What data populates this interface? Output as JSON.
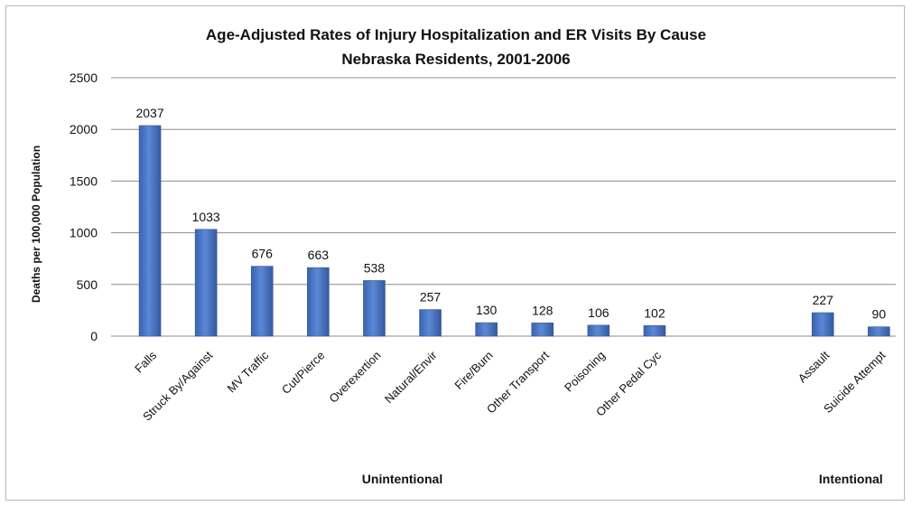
{
  "chart_data": {
    "type": "bar",
    "title": [
      "Age-Adjusted Rates of Injury Hospitalization and ER Visits By Cause",
      "Nebraska Residents, 2001-2006"
    ],
    "ylabel": "Deaths per 100,000 Population",
    "ylim": [
      0,
      2500
    ],
    "yticks": [
      "0",
      "500",
      "1000",
      "1500",
      "2000",
      "2500"
    ],
    "grid": true,
    "categories": [
      "Falls",
      "Struck By/Against",
      "MV Traffic",
      "Cut/Pierce",
      "Overexertion",
      "Natural/Envir",
      "Fire/Burn",
      "Other Transport",
      "Poisoning",
      "Other Pedal Cyc",
      "",
      "",
      "Assault",
      "Suicide Attempt"
    ],
    "values": [
      2037,
      1033,
      676,
      663,
      538,
      257,
      130,
      128,
      106,
      102,
      null,
      null,
      227,
      90
    ],
    "groups": [
      {
        "label": "Unintentional",
        "from": 0,
        "to": 9
      },
      {
        "label": "Intentional",
        "from": 12,
        "to": 13
      }
    ],
    "colors": {
      "bar": "#4a76c6",
      "bar_dark": "#35599b",
      "grid": "#8c8c8c"
    }
  }
}
